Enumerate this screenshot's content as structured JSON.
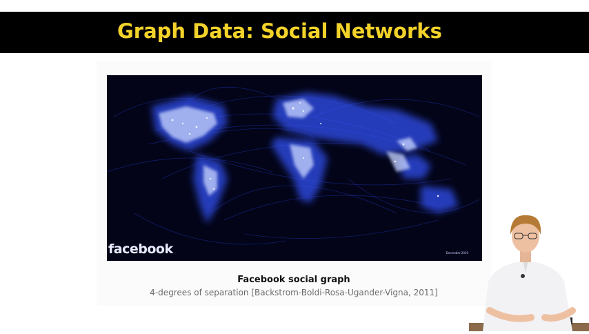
{
  "slide": {
    "title": "Graph Data: Social Networks",
    "image": {
      "logo_text": "facebook",
      "date_text": "December 2010"
    },
    "caption": {
      "title": "Facebook social graph",
      "subtitle": "4-degrees of separation [Backstrom-Boldi-Rosa-Ugander-Vigna, 2011]"
    }
  },
  "colors": {
    "title_bar": "#000000",
    "title_text": "#f3d22a",
    "map_background": "#030418",
    "map_glow": "#3f5dff"
  }
}
